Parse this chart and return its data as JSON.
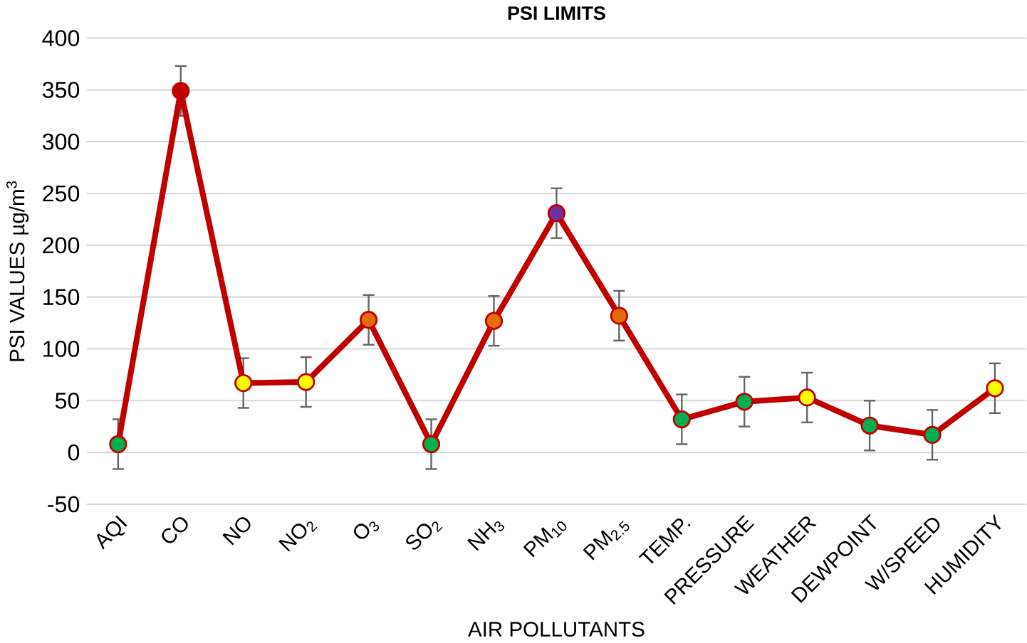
{
  "chart_data": {
    "type": "line",
    "title": "PSI LIMITS",
    "xlabel": "AIR POLLUTANTS",
    "ylabel": "PSI VALUES µg/m$^{3}$",
    "categories": [
      "AQI",
      "CO",
      "NO",
      "NO$_{2}$",
      "O$_{3}$",
      "SO$_{2}$",
      "NH$_{3}$",
      "PM$_{10}$",
      "PM$_{2.5}$",
      "TEMP.",
      "PRESSURE",
      "WEATHER",
      "DEWPOINT",
      "W/SPEED",
      "HUMIDITY"
    ],
    "series": [
      {
        "color": "#c00000",
        "values": [
          8,
          349,
          67,
          68,
          128,
          8,
          127,
          231,
          132,
          32,
          49,
          53,
          26,
          17,
          62
        ],
        "errors": [
          24,
          24,
          24,
          24,
          24,
          24,
          24,
          24,
          24,
          24,
          24,
          24,
          24,
          24,
          24
        ],
        "colors": [
          "#00b050",
          "#c00000",
          "#ffff00",
          "#ffff00",
          "#e46c0a",
          "#00b050",
          "#e46c0a",
          "#7030a0",
          "#e46c0a",
          "#00b050",
          "#00b050",
          "#ffff00",
          "#00b050",
          "#00b050",
          "#ffff00"
        ]
      }
    ],
    "ylim": [
      -50,
      400
    ],
    "yticks": [
      -50,
      0,
      50,
      100,
      150,
      200,
      250,
      300,
      350,
      400
    ],
    "grid": "y",
    "marker": "circle",
    "line_style": "solid"
  }
}
